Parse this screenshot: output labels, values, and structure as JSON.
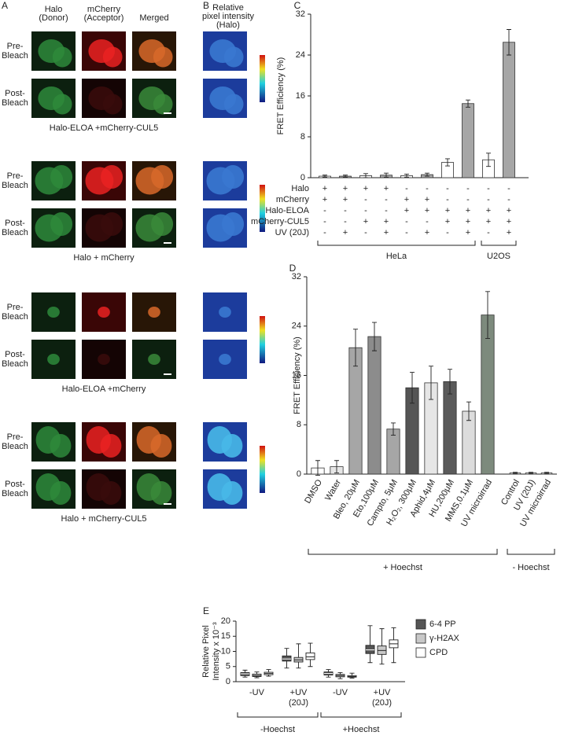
{
  "figure": {
    "panel_a": {
      "label": "A",
      "columns": [
        [
          "Halo",
          "(Donor)"
        ],
        [
          "mCherry",
          "(Acceptor)"
        ],
        [
          "Merged"
        ]
      ],
      "rows": [
        [
          "Pre-",
          "Bleach"
        ],
        [
          "Post-",
          "Bleach"
        ]
      ],
      "captions": [
        "Halo-ELOA +mCherry-CUL5",
        "Halo + mCherry",
        "Halo-ELOA +mCherry",
        "Halo + mCherry-CUL5"
      ]
    },
    "panel_b": {
      "label": "B",
      "title": [
        "Relative",
        "pixel intensity",
        "(Halo)"
      ]
    }
  },
  "chart_data": [
    {
      "type": "bar",
      "label": "C",
      "ylabel": "FRET Efficiency (%)",
      "ylim": [
        0,
        32
      ],
      "yticks": [
        0,
        8,
        16,
        24,
        32
      ],
      "row_labels": [
        "Halo",
        "mCherry",
        "Halo-ELOA",
        "mCherry-CUL5",
        "UV (20J)"
      ],
      "groups": [
        {
          "label": "HeLa",
          "values": [
            0.3,
            0.3,
            0.4,
            0.5,
            0.4,
            0.6,
            3.0,
            14.5
          ],
          "errors": [
            0.2,
            0.2,
            0.4,
            0.4,
            0.3,
            0.3,
            0.7,
            0.7
          ],
          "colors": [
            "#ffffff",
            "#a6a6a6",
            "#ffffff",
            "#a6a6a6",
            "#ffffff",
            "#a6a6a6",
            "#ffffff",
            "#a6a6a6"
          ],
          "signs": [
            [
              "+",
              "+",
              "+",
              "+",
              "-",
              "-",
              "-",
              "-"
            ],
            [
              "+",
              "+",
              "-",
              "-",
              "+",
              "+",
              "-",
              "-"
            ],
            [
              "-",
              "-",
              "-",
              "-",
              "+",
              "+",
              "+",
              "+"
            ],
            [
              "-",
              "-",
              "+",
              "+",
              "-",
              "-",
              "+",
              "+"
            ],
            [
              "-",
              "+",
              "-",
              "+",
              "-",
              "+",
              "-",
              "+"
            ]
          ]
        },
        {
          "label": "U2OS",
          "values": [
            3.5,
            26.5
          ],
          "errors": [
            1.3,
            2.5
          ],
          "colors": [
            "#ffffff",
            "#a6a6a6"
          ],
          "signs": [
            [
              "-",
              "-"
            ],
            [
              "-",
              "-"
            ],
            [
              "+",
              "+"
            ],
            [
              "+",
              "+"
            ],
            [
              "-",
              "+"
            ]
          ]
        }
      ]
    },
    {
      "type": "bar",
      "label": "D",
      "ylabel": "FRET Efficiency (%)",
      "ylim": [
        0,
        32
      ],
      "yticks": [
        0,
        8,
        16,
        24,
        32
      ],
      "groups": [
        {
          "label": "+ Hoechst",
          "categories": [
            "DMSO",
            "Water",
            "Bleo, 20μM",
            "Eto,100μM",
            "Campto, 5μM",
            "H₂O₂, 300μM",
            "Aphid,4μM",
            "HU,200μM",
            "MMS,0.1μM",
            "UV microirrad"
          ],
          "values": [
            1.0,
            1.2,
            20.5,
            22.3,
            7.3,
            14.0,
            14.8,
            15.0,
            10.2,
            25.8
          ],
          "errors": [
            1.2,
            1.0,
            3.0,
            2.3,
            1.0,
            2.5,
            2.7,
            2.0,
            1.5,
            3.8
          ],
          "colors": [
            "#ffffff",
            "#e6e6e6",
            "#a6a6a6",
            "#8c8c8c",
            "#a6a6a6",
            "#555555",
            "#e6e6e6",
            "#5a5a5a",
            "#dcdcdc",
            "#7d8a7d"
          ]
        },
        {
          "label": "- Hoechst",
          "categories": [
            "Control",
            "UV (20J)",
            "UV microirrad"
          ],
          "values": [
            0.2,
            0.2,
            0.2
          ],
          "errors": [
            0.1,
            0.1,
            0.1
          ],
          "colors": [
            "#ffffff",
            "#ffffff",
            "#ffffff"
          ]
        }
      ]
    },
    {
      "type": "box",
      "label": "E",
      "ylabel": [
        "Relative Pixel",
        "Intensity x 10⁻³"
      ],
      "ylim": [
        0,
        20
      ],
      "yticks": [
        0,
        5,
        10,
        15,
        20
      ],
      "series": [
        {
          "name": "6-4 PP",
          "color": "#555555"
        },
        {
          "name": "γ-H2AX",
          "color": "#c8c8c8"
        },
        {
          "name": "CPD",
          "color": "#ffffff"
        }
      ],
      "groups": [
        {
          "label": "-Hoechst",
          "subgroups": [
            {
              "label": [
                "-UV"
              ],
              "boxes": [
                [
                  1.5,
                  2.0,
                  2.6,
                  3.0,
                  3.8
                ],
                [
                  1.3,
                  1.7,
                  2.0,
                  2.5,
                  3.2
                ],
                [
                  1.8,
                  2.3,
                  2.7,
                  3.1,
                  4.0
                ]
              ]
            },
            {
              "label": [
                "+UV",
                "(20J)"
              ],
              "boxes": [
                [
                  4.5,
                  6.8,
                  7.5,
                  8.5,
                  11.0
                ],
                [
                  4.5,
                  6.5,
                  7.2,
                  8.0,
                  12.5
                ],
                [
                  5.0,
                  7.3,
                  8.2,
                  9.5,
                  12.7
                ]
              ]
            }
          ]
        },
        {
          "label": "+Hoechst",
          "subgroups": [
            {
              "label": [
                "-UV"
              ],
              "boxes": [
                [
                  1.5,
                  2.2,
                  2.7,
                  3.2,
                  4.0
                ],
                [
                  1.0,
                  1.6,
                  2.0,
                  2.4,
                  3.0
                ],
                [
                  1.2,
                  1.5,
                  1.7,
                  2.0,
                  2.8
                ]
              ]
            },
            {
              "label": [
                "+UV",
                "(20J)"
              ],
              "boxes": [
                [
                  6.3,
                  9.3,
                  10.5,
                  12.0,
                  18.5
                ],
                [
                  5.8,
                  9.0,
                  10.3,
                  11.8,
                  17.5
                ],
                [
                  6.3,
                  11.2,
                  12.5,
                  13.8,
                  17.8
                ]
              ]
            }
          ]
        }
      ]
    }
  ]
}
